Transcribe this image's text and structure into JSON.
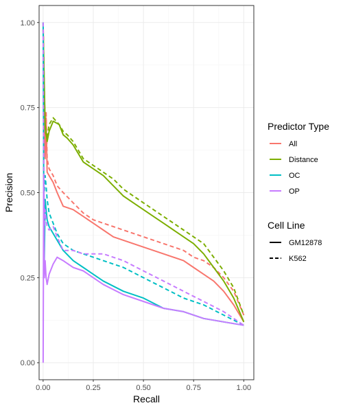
{
  "chart_data": {
    "type": "line",
    "xlabel": "Recall",
    "ylabel": "Precision",
    "xlim": [
      -0.02,
      1.05
    ],
    "ylim": [
      -0.05,
      1.05
    ],
    "x_ticks": [
      "0.00",
      "0.25",
      "0.50",
      "0.75",
      "1.00"
    ],
    "y_ticks": [
      "0.00",
      "0.25",
      "0.50",
      "0.75",
      "1.00"
    ],
    "grid": true,
    "legend_position": "right",
    "colors": {
      "All": "#F8766D",
      "Distance": "#7CAE00",
      "OC": "#00BFC4",
      "OP": "#C77CFF",
      "axis": "#333333",
      "grid_major": "#ebebeb",
      "grid_minor": "#f5f5f5"
    },
    "legends": [
      {
        "title": "Predictor Type",
        "entries": [
          {
            "label": "All",
            "color": "#F8766D"
          },
          {
            "label": "Distance",
            "color": "#7CAE00"
          },
          {
            "label": "OC",
            "color": "#00BFC4"
          },
          {
            "label": "OP",
            "color": "#C77CFF"
          }
        ]
      },
      {
        "title": "Cell Line",
        "entries": [
          {
            "label": "GM12878",
            "dash": "solid"
          },
          {
            "label": "K562",
            "dash": "dashed"
          }
        ]
      }
    ],
    "series": [
      {
        "predictor": "All",
        "cell_line": "GM12878",
        "x": [
          0.0,
          0.005,
          0.01,
          0.015,
          0.02,
          0.03,
          0.05,
          0.07,
          0.1,
          0.15,
          0.2,
          0.25,
          0.3,
          0.35,
          0.4,
          0.5,
          0.6,
          0.7,
          0.75,
          0.8,
          0.85,
          0.9,
          0.95,
          1.0
        ],
        "y": [
          1.0,
          0.78,
          0.6,
          0.72,
          0.56,
          0.55,
          0.53,
          0.5,
          0.46,
          0.45,
          0.43,
          0.41,
          0.39,
          0.37,
          0.36,
          0.34,
          0.32,
          0.3,
          0.28,
          0.26,
          0.24,
          0.21,
          0.17,
          0.12
        ]
      },
      {
        "predictor": "All",
        "cell_line": "K562",
        "x": [
          0.0,
          0.005,
          0.01,
          0.015,
          0.02,
          0.03,
          0.05,
          0.07,
          0.1,
          0.15,
          0.2,
          0.25,
          0.3,
          0.35,
          0.4,
          0.5,
          0.6,
          0.7,
          0.75,
          0.8,
          0.85,
          0.9,
          0.95,
          1.0
        ],
        "y": [
          1.0,
          0.8,
          0.62,
          0.74,
          0.6,
          0.57,
          0.55,
          0.52,
          0.5,
          0.47,
          0.44,
          0.42,
          0.41,
          0.4,
          0.39,
          0.37,
          0.35,
          0.33,
          0.31,
          0.3,
          0.28,
          0.25,
          0.21,
          0.14
        ]
      },
      {
        "predictor": "Distance",
        "cell_line": "GM12878",
        "x": [
          0.0,
          0.01,
          0.02,
          0.03,
          0.05,
          0.08,
          0.1,
          0.12,
          0.15,
          0.2,
          0.25,
          0.3,
          0.35,
          0.4,
          0.45,
          0.5,
          0.55,
          0.6,
          0.65,
          0.7,
          0.75,
          0.8,
          0.85,
          0.9,
          0.95,
          1.0
        ],
        "y": [
          0.98,
          0.7,
          0.65,
          0.68,
          0.71,
          0.7,
          0.67,
          0.66,
          0.64,
          0.59,
          0.57,
          0.55,
          0.52,
          0.49,
          0.47,
          0.45,
          0.43,
          0.41,
          0.39,
          0.37,
          0.35,
          0.32,
          0.28,
          0.24,
          0.19,
          0.12
        ]
      },
      {
        "predictor": "Distance",
        "cell_line": "K562",
        "x": [
          0.0,
          0.01,
          0.02,
          0.03,
          0.05,
          0.08,
          0.1,
          0.12,
          0.15,
          0.2,
          0.25,
          0.3,
          0.35,
          0.4,
          0.45,
          0.5,
          0.55,
          0.6,
          0.65,
          0.7,
          0.75,
          0.8,
          0.85,
          0.9,
          0.95,
          1.0
        ],
        "y": [
          0.98,
          0.68,
          0.66,
          0.7,
          0.72,
          0.7,
          0.68,
          0.67,
          0.65,
          0.6,
          0.58,
          0.56,
          0.54,
          0.51,
          0.49,
          0.47,
          0.45,
          0.43,
          0.41,
          0.39,
          0.37,
          0.35,
          0.31,
          0.27,
          0.22,
          0.14
        ]
      },
      {
        "predictor": "OC",
        "cell_line": "GM12878",
        "x": [
          0.0,
          0.003,
          0.006,
          0.01,
          0.015,
          0.02,
          0.03,
          0.05,
          0.07,
          0.1,
          0.15,
          0.2,
          0.25,
          0.3,
          0.4,
          0.5,
          0.6,
          0.7,
          0.8,
          0.9,
          1.0
        ],
        "y": [
          1.0,
          0.55,
          0.3,
          0.48,
          0.45,
          0.42,
          0.4,
          0.38,
          0.36,
          0.33,
          0.3,
          0.28,
          0.26,
          0.24,
          0.21,
          0.19,
          0.16,
          0.15,
          0.13,
          0.12,
          0.11
        ]
      },
      {
        "predictor": "OC",
        "cell_line": "K562",
        "x": [
          0.0,
          0.003,
          0.006,
          0.01,
          0.015,
          0.02,
          0.03,
          0.05,
          0.07,
          0.1,
          0.15,
          0.2,
          0.25,
          0.3,
          0.4,
          0.5,
          0.6,
          0.7,
          0.8,
          0.9,
          1.0
        ],
        "y": [
          1.0,
          0.58,
          0.5,
          0.55,
          0.52,
          0.48,
          0.44,
          0.41,
          0.38,
          0.35,
          0.33,
          0.32,
          0.31,
          0.3,
          0.28,
          0.25,
          0.22,
          0.19,
          0.17,
          0.14,
          0.11
        ]
      },
      {
        "predictor": "OP",
        "cell_line": "GM12878",
        "x": [
          0.0,
          0.003,
          0.006,
          0.01,
          0.015,
          0.02,
          0.03,
          0.05,
          0.07,
          0.1,
          0.15,
          0.2,
          0.25,
          0.3,
          0.4,
          0.5,
          0.6,
          0.7,
          0.8,
          0.9,
          1.0
        ],
        "y": [
          0.0,
          0.55,
          0.25,
          0.3,
          0.25,
          0.23,
          0.26,
          0.29,
          0.31,
          0.3,
          0.28,
          0.27,
          0.25,
          0.23,
          0.2,
          0.18,
          0.16,
          0.15,
          0.13,
          0.12,
          0.11
        ]
      },
      {
        "predictor": "OP",
        "cell_line": "K562",
        "x": [
          0.0,
          0.003,
          0.006,
          0.01,
          0.015,
          0.02,
          0.03,
          0.05,
          0.07,
          0.1,
          0.15,
          0.2,
          0.25,
          0.3,
          0.4,
          0.5,
          0.6,
          0.7,
          0.8,
          0.9,
          1.0
        ],
        "y": [
          1.0,
          0.6,
          0.4,
          0.45,
          0.42,
          0.4,
          0.39,
          0.4,
          0.37,
          0.33,
          0.33,
          0.32,
          0.32,
          0.32,
          0.3,
          0.27,
          0.24,
          0.21,
          0.18,
          0.15,
          0.11
        ]
      }
    ]
  }
}
